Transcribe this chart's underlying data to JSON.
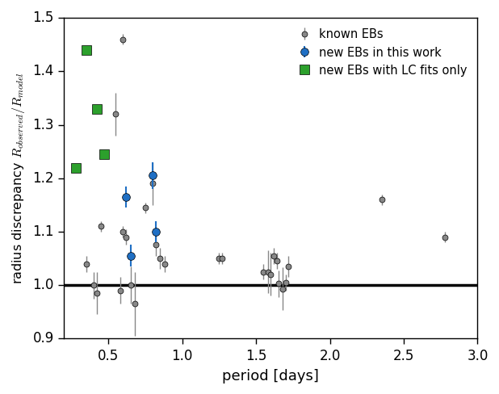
{
  "title": "",
  "xlabel": "period [days]",
  "ylabel": "radius discrepancy $R_{observed}/R_{model}$",
  "xlim": [
    0.2,
    3.0
  ],
  "ylim": [
    0.9,
    1.5
  ],
  "xticks": [
    0.5,
    1.0,
    1.5,
    2.0,
    2.5,
    3.0
  ],
  "yticks": [
    0.9,
    1.0,
    1.1,
    1.2,
    1.3,
    1.4,
    1.5
  ],
  "hline_y": 1.0,
  "gray_points": {
    "x": [
      0.35,
      0.4,
      0.42,
      0.45,
      0.55,
      0.58,
      0.6,
      0.62,
      0.65,
      0.68,
      0.75,
      0.8,
      0.82,
      0.85,
      0.88,
      1.25,
      1.27,
      1.55,
      1.58,
      1.6,
      1.62,
      1.64,
      1.65,
      1.68,
      1.7,
      1.72,
      2.35,
      2.78
    ],
    "y": [
      1.04,
      1.0,
      0.985,
      1.11,
      1.32,
      0.99,
      1.1,
      1.09,
      1.0,
      0.965,
      1.145,
      1.19,
      1.075,
      1.05,
      1.04,
      1.05,
      1.05,
      1.025,
      1.025,
      1.02,
      1.055,
      1.045,
      1.003,
      0.993,
      1.005,
      1.035,
      1.16,
      1.09
    ],
    "yerr": [
      0.015,
      0.025,
      0.04,
      0.01,
      0.04,
      0.025,
      0.01,
      0.015,
      0.035,
      0.06,
      0.01,
      0.04,
      0.02,
      0.02,
      0.015,
      0.01,
      0.01,
      0.015,
      0.04,
      0.04,
      0.015,
      0.015,
      0.025,
      0.04,
      0.015,
      0.02,
      0.01,
      0.01
    ],
    "color": "#888888"
  },
  "gray_top_point": {
    "x": [
      0.6
    ],
    "y": [
      1.46
    ],
    "yerr": [
      0.01
    ],
    "color": "#888888"
  },
  "blue_points": {
    "x": [
      0.62,
      0.65,
      0.8,
      0.82
    ],
    "y": [
      1.165,
      1.055,
      1.205,
      1.1
    ],
    "yerr": [
      0.02,
      0.02,
      0.025,
      0.02
    ],
    "color": "#1f6fc4"
  },
  "green_points": {
    "x": [
      0.28,
      0.35,
      0.42,
      0.47
    ],
    "y": [
      1.22,
      1.44,
      1.33,
      1.245
    ],
    "color": "#2ca02c"
  },
  "legend_gray_label": "known EBs",
  "legend_blue_label": "new EBs in this work",
  "legend_green_label": "new EBs with LC fits only",
  "bg_color": "#ffffff",
  "font_size": 13
}
